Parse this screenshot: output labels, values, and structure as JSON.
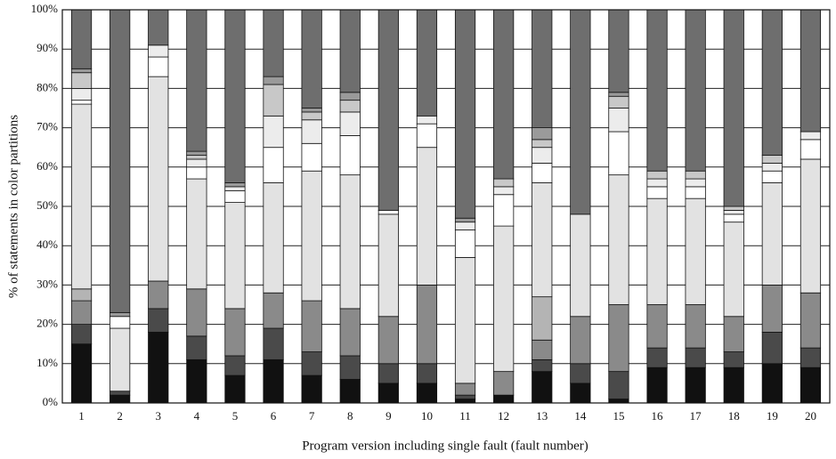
{
  "chart_data": {
    "type": "stacked_bar",
    "x_label": "Program version including single fault (fault number)",
    "y_label": "% of statements in color partitions",
    "categories": [
      "1",
      "2",
      "3",
      "4",
      "5",
      "6",
      "7",
      "8",
      "9",
      "10",
      "11",
      "12",
      "13",
      "14",
      "15",
      "16",
      "17",
      "18",
      "19",
      "20"
    ],
    "series": [
      {
        "color": "#111111",
        "values": [
          15,
          2,
          18,
          11,
          7,
          11,
          7,
          6,
          5,
          5,
          1,
          2,
          8,
          5,
          1,
          9,
          9,
          9,
          10,
          9
        ]
      },
      {
        "color": "#4a4a4a",
        "values": [
          5,
          1,
          6,
          6,
          5,
          8,
          6,
          6,
          5,
          5,
          1,
          0,
          3,
          5,
          7,
          5,
          5,
          4,
          8,
          5
        ]
      },
      {
        "color": "#8a8a8a",
        "values": [
          6,
          0,
          7,
          12,
          12,
          9,
          13,
          12,
          12,
          20,
          3,
          6,
          5,
          12,
          17,
          11,
          11,
          9,
          12,
          14
        ]
      },
      {
        "color": "#b4b4b4",
        "values": [
          3,
          0,
          0,
          0,
          0,
          0,
          0,
          0,
          0,
          0,
          0,
          0,
          11,
          0,
          0,
          0,
          0,
          0,
          0,
          0
        ]
      },
      {
        "color": "#e2e2e2",
        "values": [
          47,
          16,
          52,
          28,
          27,
          28,
          33,
          34,
          26,
          35,
          32,
          37,
          29,
          26,
          33,
          27,
          27,
          24,
          26,
          34
        ]
      },
      {
        "color": "#ffffff",
        "values": [
          1,
          3,
          5,
          3,
          3,
          9,
          7,
          10,
          1,
          6,
          7,
          8,
          5,
          0,
          11,
          3,
          3,
          2,
          3,
          5
        ]
      },
      {
        "color": "#ececec",
        "values": [
          3,
          0,
          3,
          2,
          1,
          8,
          6,
          6,
          0,
          2,
          2,
          2,
          4,
          0,
          6,
          2,
          2,
          1,
          2,
          2
        ]
      },
      {
        "color": "#c8c8c8",
        "values": [
          4,
          0,
          0,
          1,
          0,
          8,
          2,
          3,
          0,
          0,
          0,
          2,
          2,
          0,
          3,
          2,
          2,
          1,
          2,
          0
        ]
      },
      {
        "color": "#9a9a9a",
        "values": [
          1,
          1,
          0,
          1,
          1,
          2,
          1,
          2,
          0,
          0,
          1,
          0,
          3,
          0,
          1,
          0,
          0,
          0,
          0,
          0
        ]
      },
      {
        "color": "#6e6e6e",
        "values": [
          15,
          77,
          9,
          36,
          44,
          17,
          25,
          21,
          51,
          27,
          53,
          43,
          30,
          52,
          21,
          41,
          41,
          50,
          37,
          31
        ]
      }
    ],
    "ylim": [
      0,
      100
    ],
    "yticks": [
      {
        "value": 0,
        "label": "0%"
      },
      {
        "value": 10,
        "label": "10%"
      },
      {
        "value": 20,
        "label": "20%"
      },
      {
        "value": 30,
        "label": "30%"
      },
      {
        "value": 40,
        "label": "40%"
      },
      {
        "value": 50,
        "label": "50%"
      },
      {
        "value": 60,
        "label": "60%"
      },
      {
        "value": 70,
        "label": "70%"
      },
      {
        "value": 80,
        "label": "80%"
      },
      {
        "value": 90,
        "label": "90%"
      },
      {
        "value": 100,
        "label": "100%"
      }
    ],
    "grid": true
  }
}
